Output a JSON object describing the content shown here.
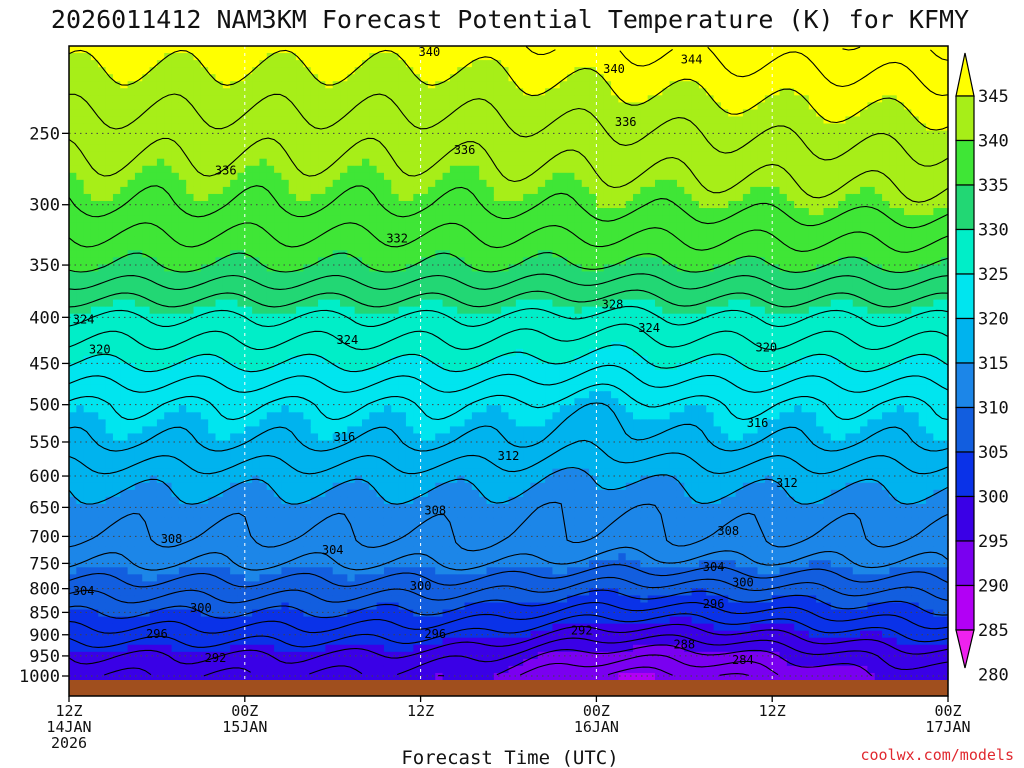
{
  "chart_data": {
    "type": "contour",
    "title": "2026011412 NAM3KM Forecast Potential Temperature (K) for KFMY",
    "xlabel": "Forecast Time (UTC)",
    "ylabel": "",
    "credit": "coolwx.com/models",
    "y_axis_scale": "log-pressure",
    "y_range_hPa": [
      1000,
      200
    ],
    "y_ticks": [
      {
        "v": 250,
        "label": "250"
      },
      {
        "v": 300,
        "label": "300"
      },
      {
        "v": 350,
        "label": "350"
      },
      {
        "v": 400,
        "label": "400"
      },
      {
        "v": 450,
        "label": "450"
      },
      {
        "v": 500,
        "label": "500"
      },
      {
        "v": 550,
        "label": "550"
      },
      {
        "v": 600,
        "label": "600"
      },
      {
        "v": 650,
        "label": "650"
      },
      {
        "v": 700,
        "label": "700"
      },
      {
        "v": 750,
        "label": "750"
      },
      {
        "v": 800,
        "label": "800"
      },
      {
        "v": 850,
        "label": "850"
      },
      {
        "v": 900,
        "label": "900"
      },
      {
        "v": 950,
        "label": "950"
      },
      {
        "v": 1000,
        "label": "1000"
      }
    ],
    "x_range_hours": [
      0,
      60
    ],
    "x_ticks": [
      {
        "h": 0,
        "label": [
          "12Z",
          "14JAN",
          "2026"
        ]
      },
      {
        "h": 12,
        "label": [
          "00Z",
          "15JAN"
        ]
      },
      {
        "h": 24,
        "label": [
          "12Z"
        ]
      },
      {
        "h": 36,
        "label": [
          "00Z",
          "16JAN"
        ]
      },
      {
        "h": 48,
        "label": [
          "12Z"
        ]
      },
      {
        "h": 60,
        "label": [
          "00Z",
          "17JAN"
        ]
      }
    ],
    "grid": true,
    "colorbar": {
      "placement": "right",
      "labels": [
        "345",
        "340",
        "335",
        "330",
        "325",
        "320",
        "315",
        "310",
        "305",
        "300",
        "295",
        "290",
        "285",
        "280"
      ],
      "bands": [
        {
          "lo": 340,
          "hi": 345,
          "color": "#ffff00"
        },
        {
          "lo": 335,
          "hi": 340,
          "color": "#a7ee18"
        },
        {
          "lo": 330,
          "hi": 335,
          "color": "#3fe636"
        },
        {
          "lo": 325,
          "hi": 330,
          "color": "#22d774"
        },
        {
          "lo": 320,
          "hi": 325,
          "color": "#00eec8"
        },
        {
          "lo": 315,
          "hi": 320,
          "color": "#00e5ef"
        },
        {
          "lo": 310,
          "hi": 315,
          "color": "#00b3ee"
        },
        {
          "lo": 305,
          "hi": 310,
          "color": "#1c86e8"
        },
        {
          "lo": 300,
          "hi": 305,
          "color": "#125edf"
        },
        {
          "lo": 295,
          "hi": 300,
          "color": "#0a32e8"
        },
        {
          "lo": 290,
          "hi": 295,
          "color": "#3a00e6"
        },
        {
          "lo": 285,
          "hi": 290,
          "color": "#7a00f0"
        },
        {
          "lo": 280,
          "hi": 285,
          "color": "#b200f5"
        },
        {
          "lo": 275,
          "hi": 280,
          "color": "#ee22ee"
        }
      ]
    },
    "ground_color": "#a04f1e",
    "theta_profile_hour0": [
      {
        "p": 1000,
        "theta": 292
      },
      {
        "p": 950,
        "theta": 294
      },
      {
        "p": 900,
        "theta": 297
      },
      {
        "p": 850,
        "theta": 300
      },
      {
        "p": 800,
        "theta": 303
      },
      {
        "p": 750,
        "theta": 306
      },
      {
        "p": 700,
        "theta": 308
      },
      {
        "p": 650,
        "theta": 309
      },
      {
        "p": 600,
        "theta": 311
      },
      {
        "p": 550,
        "theta": 314
      },
      {
        "p": 500,
        "theta": 316
      },
      {
        "p": 450,
        "theta": 320
      },
      {
        "p": 400,
        "theta": 324
      },
      {
        "p": 350,
        "theta": 330
      },
      {
        "p": 300,
        "theta": 334
      },
      {
        "p": 250,
        "theta": 337
      },
      {
        "p": 200,
        "theta": 341
      }
    ],
    "contour_labels": [
      {
        "text": "340",
        "h": 24.6,
        "p": 203
      },
      {
        "text": "344",
        "h": 42.5,
        "p": 207
      },
      {
        "text": "340",
        "h": 37.2,
        "p": 212
      },
      {
        "text": "336",
        "h": 38.0,
        "p": 243
      },
      {
        "text": "336",
        "h": 27.0,
        "p": 261
      },
      {
        "text": "336",
        "h": 10.7,
        "p": 275
      },
      {
        "text": "332",
        "h": 22.4,
        "p": 327
      },
      {
        "text": "328",
        "h": 37.1,
        "p": 387
      },
      {
        "text": "324",
        "h": 39.6,
        "p": 411
      },
      {
        "text": "324",
        "h": 1.0,
        "p": 402
      },
      {
        "text": "324",
        "h": 19.0,
        "p": 424
      },
      {
        "text": "320",
        "h": 2.1,
        "p": 434
      },
      {
        "text": "320",
        "h": 47.6,
        "p": 432
      },
      {
        "text": "316",
        "h": 47.0,
        "p": 524
      },
      {
        "text": "316",
        "h": 18.8,
        "p": 543
      },
      {
        "text": "312",
        "h": 30.0,
        "p": 570
      },
      {
        "text": "312",
        "h": 49.0,
        "p": 611
      },
      {
        "text": "308",
        "h": 25.0,
        "p": 655
      },
      {
        "text": "308",
        "h": 45.0,
        "p": 690
      },
      {
        "text": "308",
        "h": 7.0,
        "p": 705
      },
      {
        "text": "304",
        "h": 18.0,
        "p": 725
      },
      {
        "text": "304",
        "h": 44.0,
        "p": 757
      },
      {
        "text": "304",
        "h": 1.0,
        "p": 805
      },
      {
        "text": "300",
        "h": 24.0,
        "p": 795
      },
      {
        "text": "300",
        "h": 46.0,
        "p": 788
      },
      {
        "text": "300",
        "h": 9.0,
        "p": 840
      },
      {
        "text": "296",
        "h": 44.0,
        "p": 832
      },
      {
        "text": "296",
        "h": 6.0,
        "p": 898
      },
      {
        "text": "296",
        "h": 25.0,
        "p": 898
      },
      {
        "text": "292",
        "h": 35.0,
        "p": 890
      },
      {
        "text": "292",
        "h": 10.0,
        "p": 955
      },
      {
        "text": "288",
        "h": 42.0,
        "p": 923
      },
      {
        "text": "284",
        "h": 46.0,
        "p": 960
      }
    ]
  }
}
